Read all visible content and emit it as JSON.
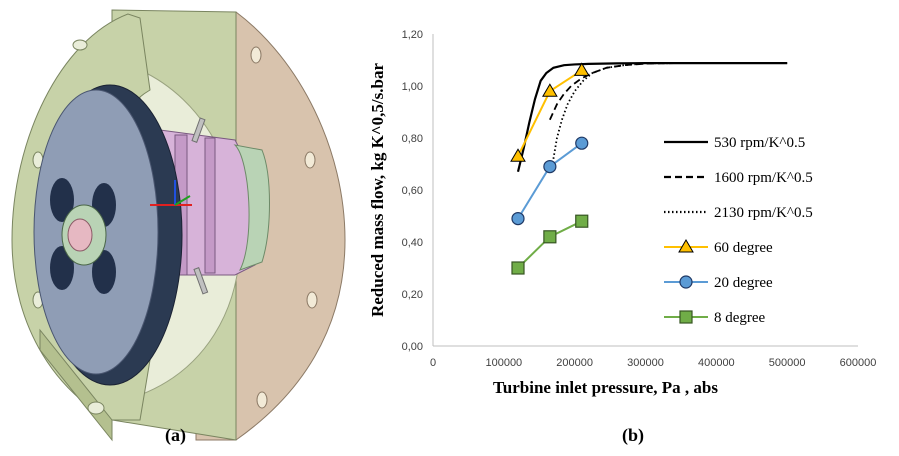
{
  "panels": {
    "left_label": "(a)",
    "right_label": "(b)"
  },
  "colors": {
    "cad_flange": "#c7d2a8",
    "cad_housing": "#d8c3ad",
    "cad_disc_face": "#8f9db5",
    "cad_disc_rim": "#2b3a52",
    "cad_rotor": "#d7b3d9",
    "cad_shaft": "#b9d3b5",
    "series_black": "#000000",
    "series_60": "#ffc000",
    "series_20": "#5b9bd5",
    "series_8": "#70ad47",
    "marker_stroke": "#1f3864"
  },
  "chart_data": {
    "type": "line",
    "xlabel": "Turbine inlet pressure, Pa , abs",
    "ylabel": "Reduced mass flow, kg K^0,5/s.bar",
    "xlim": [
      0,
      600000
    ],
    "ylim": [
      0,
      1.2
    ],
    "x_ticks": [
      "0",
      "100000",
      "200000",
      "300000",
      "400000",
      "500000",
      "600000"
    ],
    "y_ticks": [
      "0,00",
      "0,20",
      "0,40",
      "0,60",
      "0,80",
      "1,00",
      "1,20"
    ],
    "grid": false,
    "legend_position": "right",
    "series": [
      {
        "name": "530 rpm/K^0.5",
        "style": "solid",
        "marker": "none",
        "x": [
          120000,
          128000,
          136000,
          144000,
          152000,
          160000,
          170000,
          185000,
          200000,
          220000,
          260000,
          300000,
          400000,
          500000
        ],
        "y": [
          0.67,
          0.76,
          0.86,
          0.95,
          1.02,
          1.05,
          1.07,
          1.08,
          1.083,
          1.085,
          1.087,
          1.088,
          1.088,
          1.088
        ]
      },
      {
        "name": "1600 rpm/K^0.5",
        "style": "dashed",
        "marker": "none",
        "x": [
          165000,
          175000,
          185000,
          195000,
          210000,
          225000,
          245000,
          270000,
          300000,
          340000,
          400000,
          500000
        ],
        "y": [
          0.87,
          0.93,
          0.97,
          1.0,
          1.03,
          1.05,
          1.07,
          1.08,
          1.086,
          1.088,
          1.088,
          1.088
        ]
      },
      {
        "name": "2130 rpm/K^0.5",
        "style": "dotted",
        "marker": "none",
        "x": [
          170000,
          175000,
          182000,
          190000,
          200000,
          212000,
          225000,
          245000,
          270000,
          300000,
          340000,
          400000,
          500000
        ],
        "y": [
          0.72,
          0.8,
          0.87,
          0.93,
          0.98,
          1.02,
          1.05,
          1.07,
          1.08,
          1.087,
          1.088,
          1.088,
          1.088
        ]
      },
      {
        "name": "60 degree",
        "style": "solid",
        "marker": "triangle",
        "x": [
          120000,
          165000,
          210000
        ],
        "y": [
          0.73,
          0.98,
          1.06
        ]
      },
      {
        "name": "20 degree",
        "style": "solid",
        "marker": "circle",
        "x": [
          120000,
          165000,
          210000
        ],
        "y": [
          0.49,
          0.69,
          0.78
        ]
      },
      {
        "name": "8 degree",
        "style": "solid",
        "marker": "square",
        "x": [
          120000,
          165000,
          210000
        ],
        "y": [
          0.3,
          0.42,
          0.48
        ]
      }
    ]
  }
}
